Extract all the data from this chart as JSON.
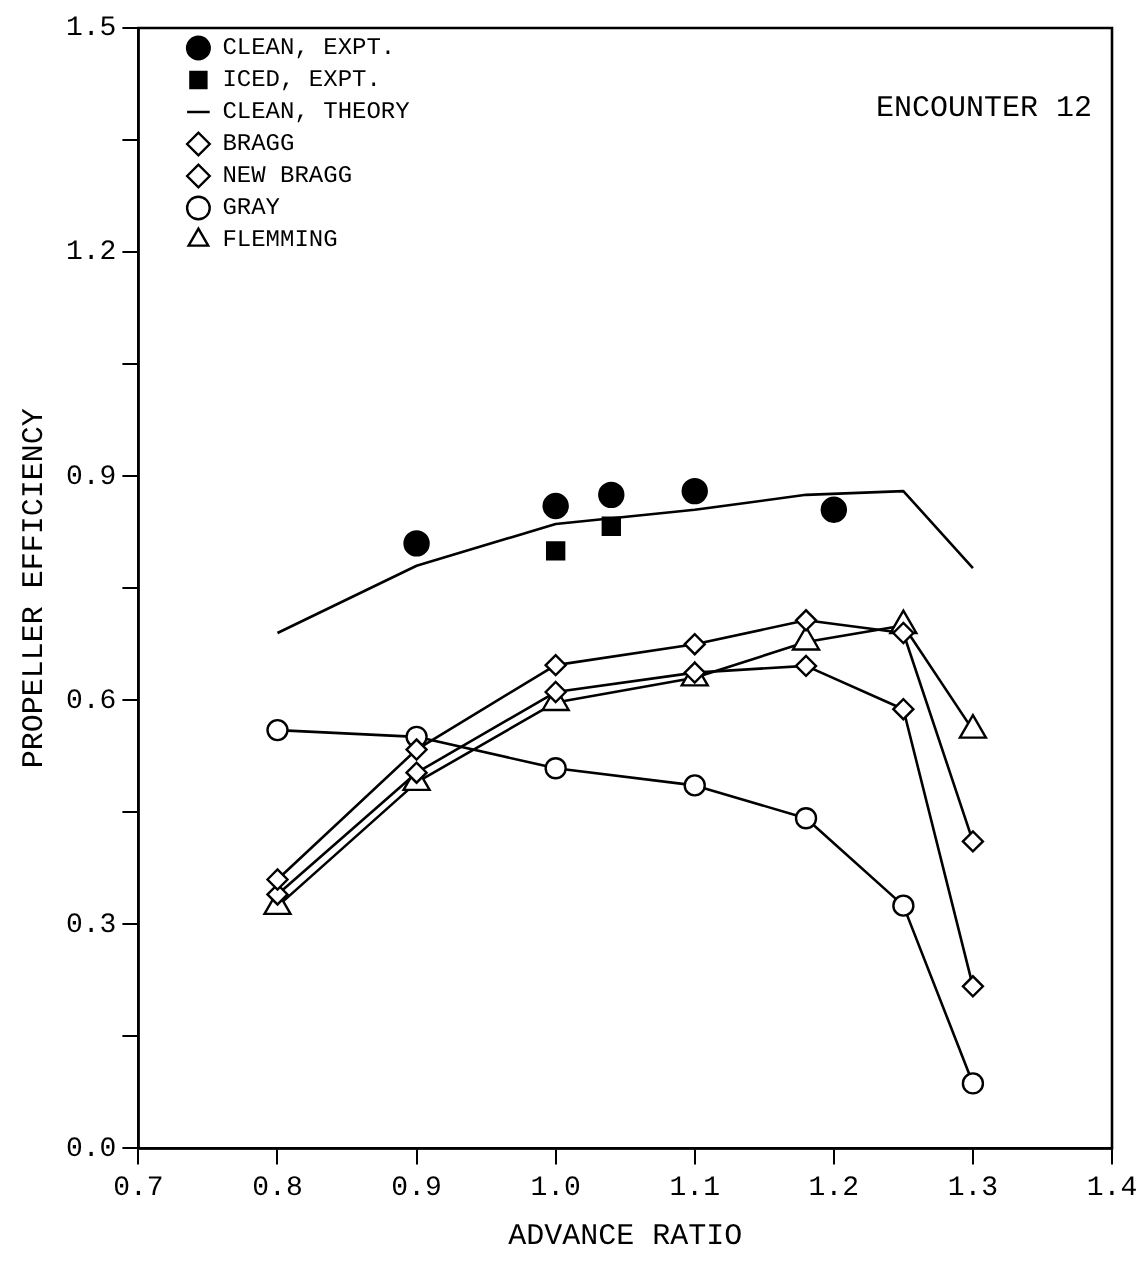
{
  "chart_data": {
    "type": "line",
    "xlabel": "ADVANCE RATIO",
    "ylabel": "PROPELLER EFFICIENCY",
    "annotations": [
      "ENCOUNTER 12"
    ],
    "xlim": [
      0.7,
      1.4
    ],
    "xticks": [
      0.7,
      0.8,
      0.9,
      {
        "value": 1.0,
        "label": "1.0"
      },
      1.1,
      1.2,
      1.3,
      1.4
    ],
    "ylim": [
      0,
      1.5
    ],
    "yticks": [
      {
        "value": 0,
        "label": "0.0"
      },
      {
        "value": 0.15,
        "label": null
      },
      0.3,
      {
        "value": 0.45,
        "label": null
      },
      0.6,
      {
        "value": 0.75,
        "label": null
      },
      0.9,
      {
        "value": 1.05,
        "label": null
      },
      1.2,
      {
        "value": 1.35,
        "label": null
      },
      1.5
    ],
    "grid": false,
    "legend": "top left",
    "series": [
      {
        "name": "CLEAN, EXPT.",
        "type": "scatter",
        "marker": "circle",
        "color": "#000000",
        "x": [
          0.9,
          1.0,
          1.04,
          1.1,
          1.2
        ],
        "values": [
          0.81,
          0.86,
          0.875,
          0.88,
          0.855
        ]
      },
      {
        "name": "ICED, EXPT.",
        "type": "scatter",
        "marker": "square",
        "color": "#000000",
        "x": [
          1.0,
          1.04
        ],
        "values": [
          0.8,
          0.833
        ]
      },
      {
        "name": "CLEAN, THEORY",
        "type": "line",
        "marker": "none",
        "color": "#000000",
        "x": [
          0.8,
          0.9,
          1.0,
          1.1,
          1.18,
          1.25,
          1.3
        ],
        "values": [
          0.69,
          0.78,
          0.836,
          0.855,
          0.875,
          0.88,
          0.777
        ]
      },
      {
        "name": "BRAGG",
        "type": "line",
        "marker": "diamond",
        "color": "#000000",
        "x": [
          0.8,
          0.9,
          1.0,
          1.1,
          1.18,
          1.25,
          1.3
        ],
        "values": [
          0.36,
          0.534,
          0.647,
          0.675,
          0.707,
          0.69,
          0.411
        ]
      },
      {
        "name": "NEW BRAGG",
        "type": "line",
        "marker": "diamond",
        "color": "#000000",
        "x": [
          0.8,
          0.9,
          1.0,
          1.1,
          1.18,
          1.25,
          1.3
        ],
        "values": [
          0.34,
          0.503,
          0.611,
          0.637,
          0.646,
          0.588,
          0.217
        ]
      },
      {
        "name": "GRAY",
        "type": "line",
        "marker": "circle",
        "color": "#000000",
        "x": [
          0.8,
          0.9,
          1.0,
          1.1,
          1.18,
          1.25,
          1.3
        ],
        "values": [
          0.56,
          0.551,
          0.509,
          0.486,
          0.442,
          0.325,
          0.087
        ]
      },
      {
        "name": "FLEMMING",
        "type": "line",
        "marker": "triangle",
        "color": "#000000",
        "x": [
          0.8,
          0.9,
          1.0,
          1.1,
          1.18,
          1.25,
          1.3
        ],
        "values": [
          0.324,
          0.49,
          0.597,
          0.63,
          0.678,
          0.7,
          0.56
        ]
      }
    ]
  }
}
